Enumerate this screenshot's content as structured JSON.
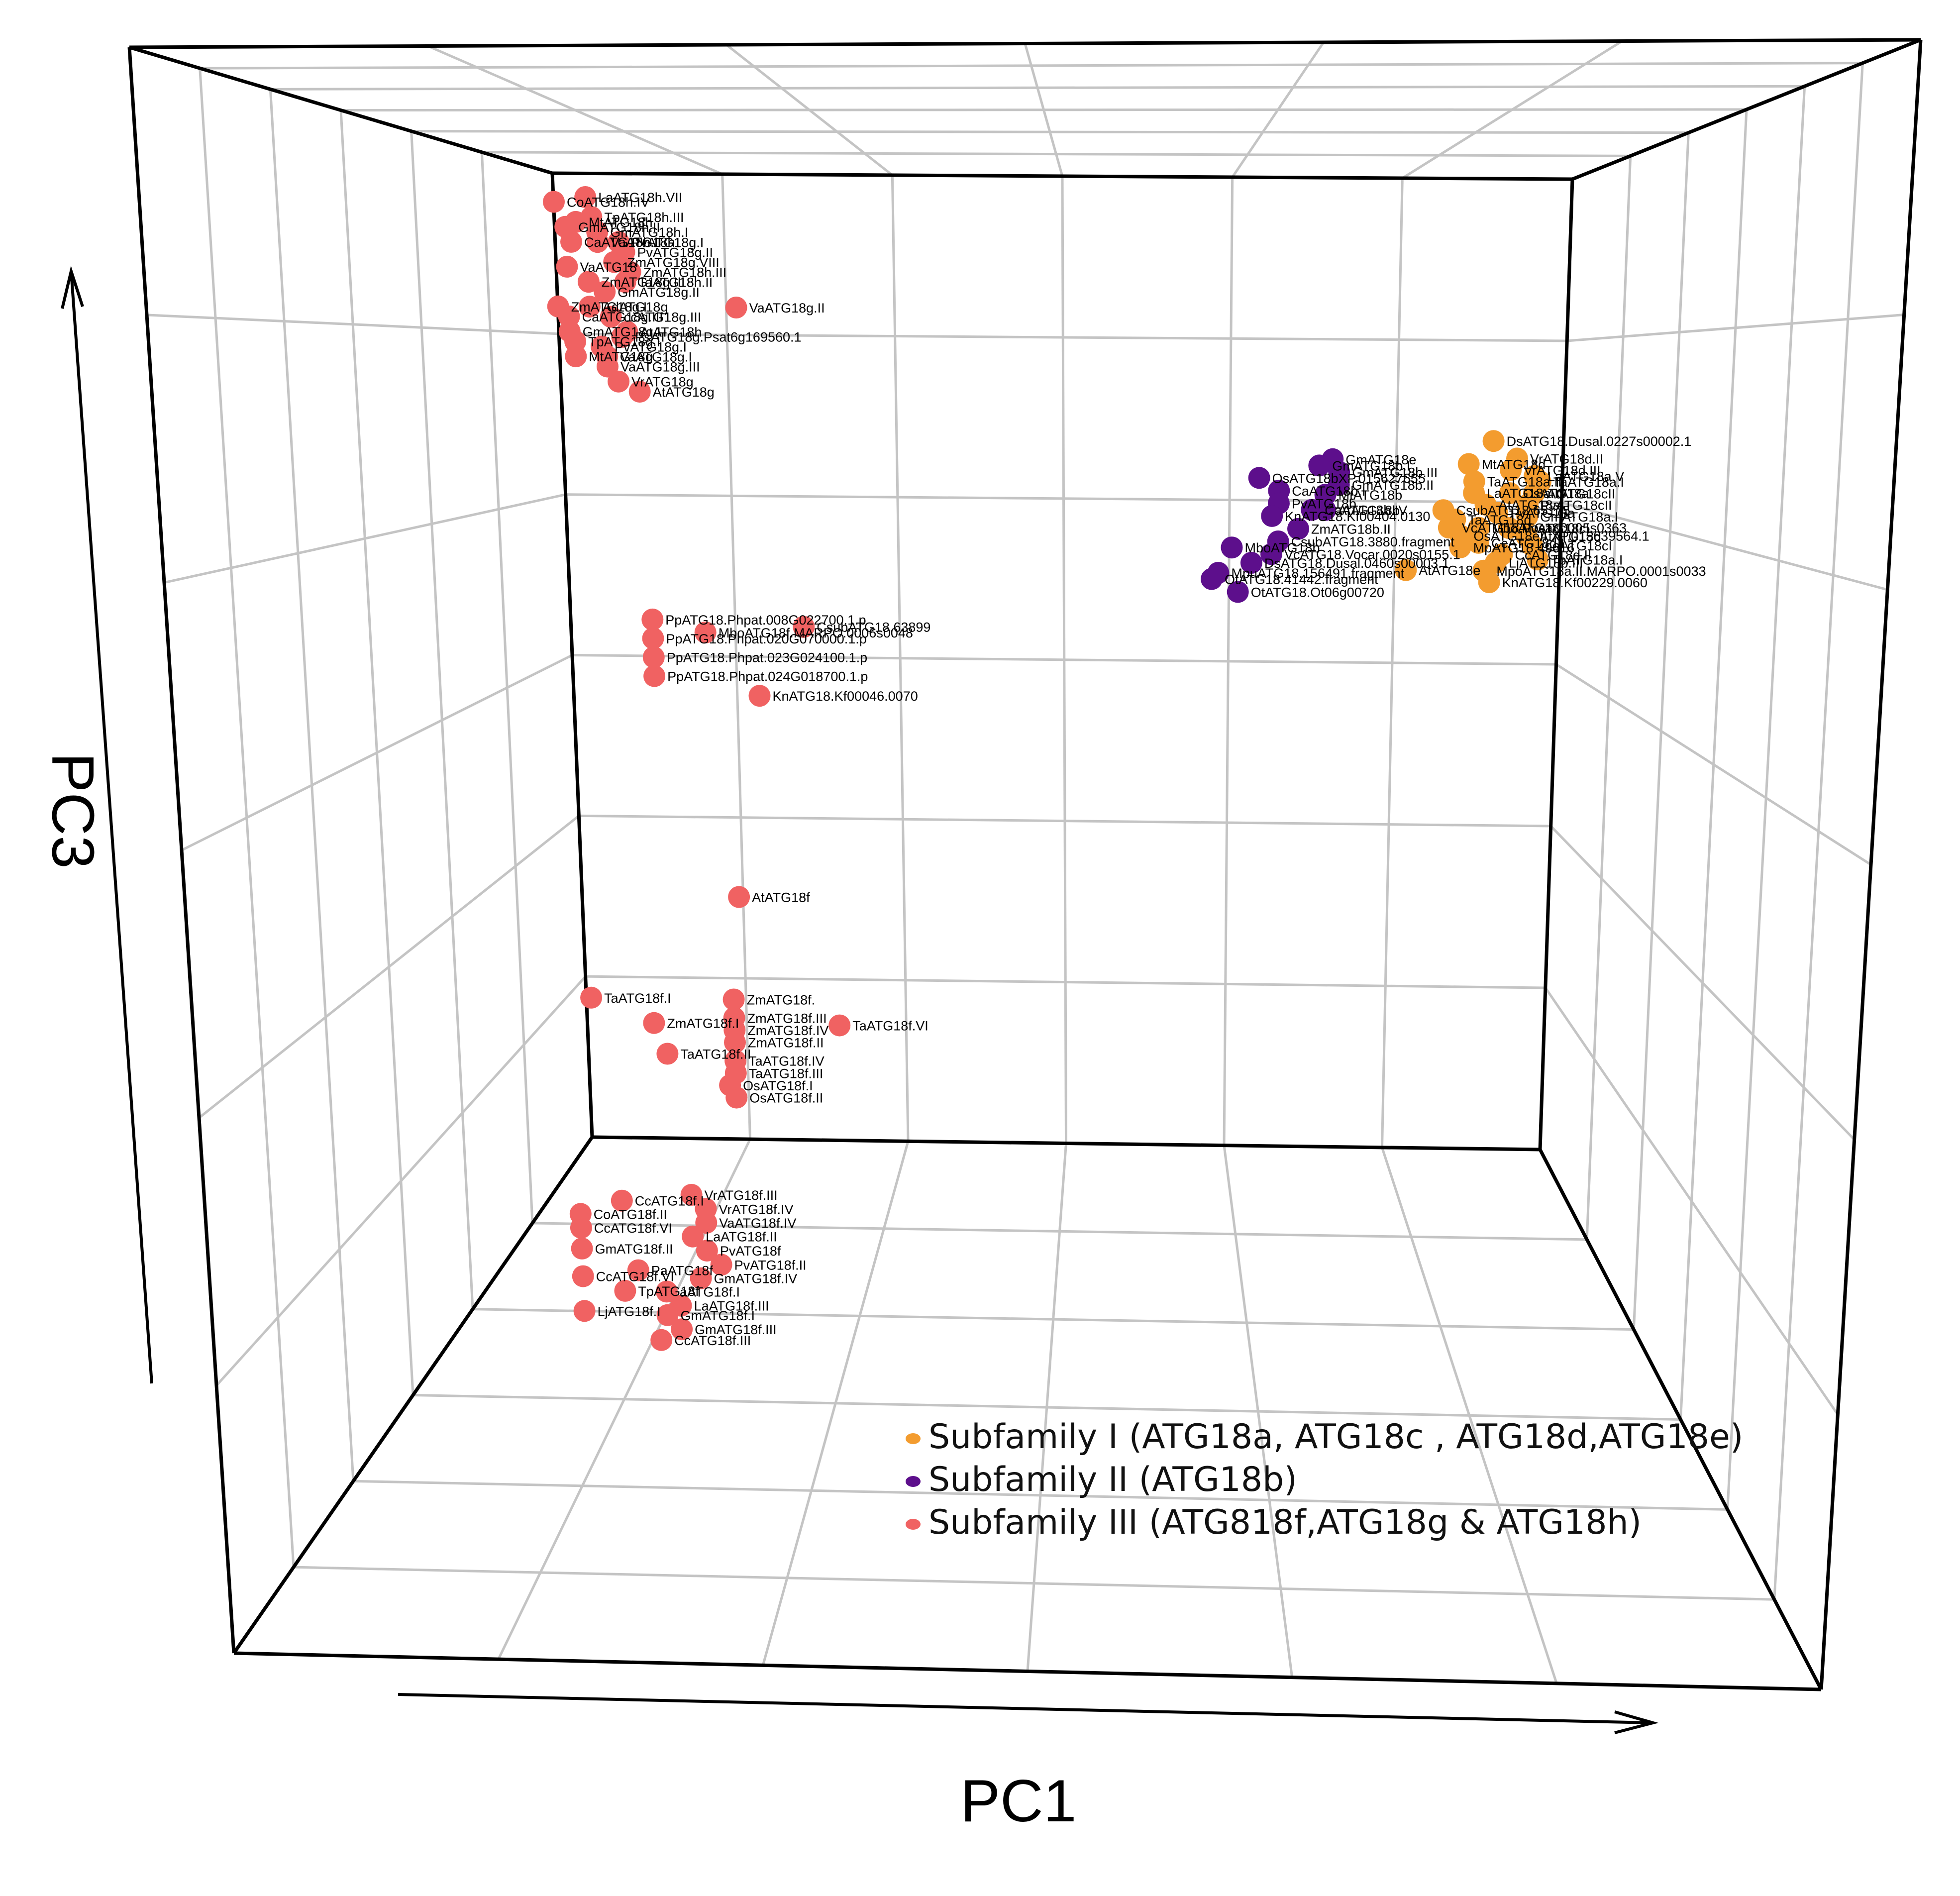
{
  "chart_data": {
    "type": "scatter",
    "projection": "3d",
    "axes": {
      "x": "PC1",
      "z": "PC3"
    },
    "grid": true,
    "legend_position": "bottom-right",
    "colors": {
      "I": "#f39c2f",
      "II": "#5d0f8c",
      "III": "#f06262"
    },
    "legend": [
      {
        "key": "I",
        "label": "Subfamily I (ATG18a, ATG18c , ATG18d,ATG18e)"
      },
      {
        "key": "II",
        "label": "Subfamily II (ATG18b)"
      },
      {
        "key": "III",
        "label": "Subfamily III (ATG818f,ATG18g & ATG18h)"
      }
    ],
    "points": [
      {
        "g": "III",
        "x": 0.02,
        "y": 0.95,
        "z": 0.965,
        "label": "CoATG18h.IV"
      },
      {
        "g": "III",
        "x": 0.05,
        "y": 0.95,
        "z": 0.97,
        "label": "LaATG18h.VII"
      },
      {
        "g": "III",
        "x": 0.055,
        "y": 0.95,
        "z": 0.95,
        "label": "TpATG18h.III"
      },
      {
        "g": "III",
        "x": 0.03,
        "y": 0.95,
        "z": 0.94,
        "label": "GmATG18h.II"
      },
      {
        "g": "III",
        "x": 0.04,
        "y": 0.95,
        "z": 0.945,
        "label": "MtATG18h"
      },
      {
        "g": "III",
        "x": 0.06,
        "y": 0.95,
        "z": 0.935,
        "label": "GmATG18h.I"
      },
      {
        "g": "III",
        "x": 0.035,
        "y": 0.95,
        "z": 0.925,
        "label": "CaATG18h.II"
      },
      {
        "g": "III",
        "x": 0.06,
        "y": 0.95,
        "z": 0.925,
        "label": "VaATG18h"
      },
      {
        "g": "III",
        "x": 0.08,
        "y": 0.95,
        "z": 0.925,
        "label": "PvATG18g.I"
      },
      {
        "g": "III",
        "x": 0.085,
        "y": 0.95,
        "z": 0.915,
        "label": "PvATG18g.II"
      },
      {
        "g": "III",
        "x": 0.075,
        "y": 0.95,
        "z": 0.905,
        "label": "ZmATG18g.VIII"
      },
      {
        "g": "III",
        "x": 0.03,
        "y": 0.95,
        "z": 0.9,
        "label": "VaATG18"
      },
      {
        "g": "III",
        "x": 0.09,
        "y": 0.95,
        "z": 0.895,
        "label": "ZmATG18h.III"
      },
      {
        "g": "III",
        "x": 0.05,
        "y": 0.95,
        "z": 0.885,
        "label": "ZmATG18g.III"
      },
      {
        "g": "III",
        "x": 0.085,
        "y": 0.95,
        "z": 0.885,
        "label": "TaATG18h.II"
      },
      {
        "g": "III",
        "x": 0.065,
        "y": 0.95,
        "z": 0.875,
        "label": "GmATG18g.II"
      },
      {
        "g": "III",
        "x": 0.05,
        "y": 0.95,
        "z": 0.86,
        "label": "AdATG18g"
      },
      {
        "g": "III",
        "x": 0.02,
        "y": 0.95,
        "z": 0.86,
        "label": "ZmATG18g.I"
      },
      {
        "g": "III",
        "x": 0.03,
        "y": 0.95,
        "z": 0.85,
        "label": "CaATG18g.III"
      },
      {
        "g": "III",
        "x": 0.07,
        "y": 0.95,
        "z": 0.85,
        "label": "ccATG18g.III"
      },
      {
        "g": "III",
        "x": 0.03,
        "y": 0.95,
        "z": 0.835,
        "label": "GmATG18g.I"
      },
      {
        "g": "III",
        "x": 0.085,
        "y": 0.95,
        "z": 0.835,
        "label": "AtATG18h"
      },
      {
        "g": "III",
        "x": 0.035,
        "y": 0.95,
        "z": 0.825,
        "label": "TpATG18g.I"
      },
      {
        "g": "III",
        "x": 0.08,
        "y": 0.95,
        "z": 0.83,
        "label": "PsATG18g.Psat6g169560.1"
      },
      {
        "g": "III",
        "x": 0.06,
        "y": 0.95,
        "z": 0.82,
        "label": "PvATG18g.I"
      },
      {
        "g": "III",
        "x": 0.035,
        "y": 0.95,
        "z": 0.81,
        "label": "MtATG18g"
      },
      {
        "g": "III",
        "x": 0.065,
        "y": 0.95,
        "z": 0.81,
        "label": "VaATG18g.I"
      },
      {
        "g": "III",
        "x": 0.065,
        "y": 0.95,
        "z": 0.8,
        "label": "VaATG18g.III"
      },
      {
        "g": "III",
        "x": 0.075,
        "y": 0.95,
        "z": 0.785,
        "label": "VrATG18g"
      },
      {
        "g": "III",
        "x": 0.095,
        "y": 0.95,
        "z": 0.775,
        "label": "AtATG18g"
      },
      {
        "g": "III",
        "x": 0.19,
        "y": 0.95,
        "z": 0.86,
        "label": "VaATG18g.II"
      },
      {
        "g": "III",
        "x": 0.2,
        "y": 0.55,
        "z": 0.6,
        "label": "PpATG18.Phpat.008G022700.1.p"
      },
      {
        "g": "III",
        "x": 0.24,
        "y": 0.55,
        "z": 0.59,
        "label": "MboATG18f.MARPO.0006s0048"
      },
      {
        "g": "III",
        "x": 0.315,
        "y": 0.55,
        "z": 0.595,
        "label": "CsubATG18.63899"
      },
      {
        "g": "III",
        "x": 0.2,
        "y": 0.55,
        "z": 0.585,
        "label": "PpATG18.Phpat.020G070000.1.p"
      },
      {
        "g": "III",
        "x": 0.2,
        "y": 0.55,
        "z": 0.57,
        "label": "PpATG18.Phpat.023G024100.1.p"
      },
      {
        "g": "III",
        "x": 0.2,
        "y": 0.55,
        "z": 0.555,
        "label": "PpATG18.Phpat.024G018700.1.p"
      },
      {
        "g": "III",
        "x": 0.28,
        "y": 0.55,
        "z": 0.54,
        "label": "KnATG18.Kf00046.0070"
      },
      {
        "g": "III",
        "x": 0.26,
        "y": 0.55,
        "z": 0.38,
        "label": "AtATG18f"
      },
      {
        "g": "III",
        "x": 0.13,
        "y": 0.6,
        "z": 0.285,
        "label": "TaATG18f.I"
      },
      {
        "g": "III",
        "x": 0.245,
        "y": 0.6,
        "z": 0.285,
        "label": "ZmATG18f."
      },
      {
        "g": "III",
        "x": 0.245,
        "y": 0.6,
        "z": 0.27,
        "label": "ZmATG18f.III"
      },
      {
        "g": "III",
        "x": 0.18,
        "y": 0.6,
        "z": 0.265,
        "label": "ZmATG18f.I"
      },
      {
        "g": "III",
        "x": 0.245,
        "y": 0.6,
        "z": 0.26,
        "label": "ZmATG18f.IV"
      },
      {
        "g": "III",
        "x": 0.33,
        "y": 0.6,
        "z": 0.265,
        "label": "TaATG18f.VI"
      },
      {
        "g": "III",
        "x": 0.245,
        "y": 0.6,
        "z": 0.25,
        "label": "ZmATG18f.II"
      },
      {
        "g": "III",
        "x": 0.19,
        "y": 0.6,
        "z": 0.24,
        "label": "TaATG18f.II"
      },
      {
        "g": "III",
        "x": 0.245,
        "y": 0.6,
        "z": 0.235,
        "label": "TaATG18f.IV"
      },
      {
        "g": "III",
        "x": 0.245,
        "y": 0.6,
        "z": 0.225,
        "label": "TaATG18f.III"
      },
      {
        "g": "III",
        "x": 0.24,
        "y": 0.6,
        "z": 0.215,
        "label": "OsATG18f.I"
      },
      {
        "g": "III",
        "x": 0.245,
        "y": 0.6,
        "z": 0.205,
        "label": "OsATG18f.II"
      },
      {
        "g": "III",
        "x": 0.2,
        "y": 0.35,
        "z": 0.2,
        "label": "CcATG18f.I"
      },
      {
        "g": "III",
        "x": 0.25,
        "y": 0.35,
        "z": 0.205,
        "label": "VrATG18f.III"
      },
      {
        "g": "III",
        "x": 0.17,
        "y": 0.35,
        "z": 0.19,
        "label": "CoATG18f.II"
      },
      {
        "g": "III",
        "x": 0.26,
        "y": 0.35,
        "z": 0.195,
        "label": "VrATG18f.IV"
      },
      {
        "g": "III",
        "x": 0.26,
        "y": 0.35,
        "z": 0.185,
        "label": "VaATG18f.IV"
      },
      {
        "g": "III",
        "x": 0.17,
        "y": 0.35,
        "z": 0.18,
        "label": "CcATG18f.VI"
      },
      {
        "g": "III",
        "x": 0.25,
        "y": 0.35,
        "z": 0.175,
        "label": "LaATG18f.II"
      },
      {
        "g": "III",
        "x": 0.26,
        "y": 0.35,
        "z": 0.165,
        "label": "PvATG18f"
      },
      {
        "g": "III",
        "x": 0.17,
        "y": 0.35,
        "z": 0.165,
        "label": "GmATG18f.II"
      },
      {
        "g": "III",
        "x": 0.27,
        "y": 0.35,
        "z": 0.155,
        "label": "PvATG18f.II"
      },
      {
        "g": "III",
        "x": 0.21,
        "y": 0.35,
        "z": 0.15,
        "label": "PaATG18f"
      },
      {
        "g": "III",
        "x": 0.255,
        "y": 0.35,
        "z": 0.145,
        "label": "GmATG18f.IV"
      },
      {
        "g": "III",
        "x": 0.17,
        "y": 0.35,
        "z": 0.145,
        "label": "CcATG18f.VI"
      },
      {
        "g": "III",
        "x": 0.2,
        "y": 0.35,
        "z": 0.135,
        "label": "TpATG18f"
      },
      {
        "g": "III",
        "x": 0.23,
        "y": 0.35,
        "z": 0.135,
        "label": "aATG18f.I"
      },
      {
        "g": "III",
        "x": 0.24,
        "y": 0.35,
        "z": 0.125,
        "label": "LaATG18f.III"
      },
      {
        "g": "III",
        "x": 0.17,
        "y": 0.35,
        "z": 0.12,
        "label": "LjATG18f.I"
      },
      {
        "g": "III",
        "x": 0.23,
        "y": 0.35,
        "z": 0.118,
        "label": "GmATG18f.I"
      },
      {
        "g": "III",
        "x": 0.24,
        "y": 0.35,
        "z": 0.108,
        "label": "GmATG18f.III"
      },
      {
        "g": "III",
        "x": 0.225,
        "y": 0.35,
        "z": 0.1,
        "label": "CcATG18f.III"
      },
      {
        "g": "II",
        "x": 0.715,
        "y": 0.55,
        "z": 0.73,
        "label": "GmATG18e"
      },
      {
        "g": "II",
        "x": 0.705,
        "y": 0.55,
        "z": 0.725,
        "label": "GmATG18b.I"
      },
      {
        "g": "II",
        "x": 0.72,
        "y": 0.55,
        "z": 0.72,
        "label": "GmATG18b.III"
      },
      {
        "g": "II",
        "x": 0.66,
        "y": 0.55,
        "z": 0.715,
        "label": "OsATG18bXP.015627655"
      },
      {
        "g": "II",
        "x": 0.72,
        "y": 0.55,
        "z": 0.71,
        "label": "GmATG18b.II"
      },
      {
        "g": "II",
        "x": 0.675,
        "y": 0.55,
        "z": 0.705,
        "label": "CaATG18b.I"
      },
      {
        "g": "II",
        "x": 0.71,
        "y": 0.55,
        "z": 0.702,
        "label": "MtATG18b"
      },
      {
        "g": "II",
        "x": 0.675,
        "y": 0.55,
        "z": 0.695,
        "label": "PvATG18b"
      },
      {
        "g": "II",
        "x": 0.71,
        "y": 0.55,
        "z": 0.69,
        "label": "AtATG18b"
      },
      {
        "g": "II",
        "x": 0.7,
        "y": 0.55,
        "z": 0.69,
        "label": "CaATG18b.IV"
      },
      {
        "g": "II",
        "x": 0.67,
        "y": 0.55,
        "z": 0.685,
        "label": "KnATG18.Kf00404.0130"
      },
      {
        "g": "II",
        "x": 0.69,
        "y": 0.55,
        "z": 0.675,
        "label": "ZmATG18b.II"
      },
      {
        "g": "II",
        "x": 0.675,
        "y": 0.55,
        "z": 0.665,
        "label": "CsubATG18.3880.fragment"
      },
      {
        "g": "II",
        "x": 0.64,
        "y": 0.55,
        "z": 0.66,
        "label": "MboATG18b"
      },
      {
        "g": "II",
        "x": 0.67,
        "y": 0.55,
        "z": 0.655,
        "label": "VcATG18.Vocar.0020s0155.1"
      },
      {
        "g": "II",
        "x": 0.655,
        "y": 0.55,
        "z": 0.648,
        "label": "DsATG18.Dusal.0460s00003.1"
      },
      {
        "g": "II",
        "x": 0.63,
        "y": 0.55,
        "z": 0.64,
        "label": "MpuATG18.156491.fragment"
      },
      {
        "g": "II",
        "x": 0.625,
        "y": 0.55,
        "z": 0.635,
        "label": "OtATG18.41442.fragment"
      },
      {
        "g": "II",
        "x": 0.645,
        "y": 0.55,
        "z": 0.625,
        "label": "OtATG18.Ot06g00720"
      },
      {
        "g": "I",
        "x": 0.865,
        "y": 0.72,
        "z": 0.74,
        "label": "DsATG18.Dusal.0227s00002.1"
      },
      {
        "g": "I",
        "x": 0.845,
        "y": 0.72,
        "z": 0.72,
        "label": "MtATG18d"
      },
      {
        "g": "I",
        "x": 0.885,
        "y": 0.72,
        "z": 0.725,
        "label": "VrATG18d.II"
      },
      {
        "g": "I",
        "x": 0.88,
        "y": 0.72,
        "z": 0.715,
        "label": "VrATG18d.III"
      },
      {
        "g": "I",
        "x": 0.9,
        "y": 0.72,
        "z": 0.71,
        "label": "LaATG18a.V"
      },
      {
        "g": "I",
        "x": 0.85,
        "y": 0.72,
        "z": 0.705,
        "label": "TaATG18a.II"
      },
      {
        "g": "I",
        "x": 0.905,
        "y": 0.72,
        "z": 0.705,
        "label": "TaATG18a.I"
      },
      {
        "g": "I",
        "x": 0.85,
        "y": 0.72,
        "z": 0.695,
        "label": "LaATG18a.IV"
      },
      {
        "g": "I",
        "x": 0.88,
        "y": 0.72,
        "z": 0.695,
        "label": "OsATG18a"
      },
      {
        "g": "I",
        "x": 0.9,
        "y": 0.72,
        "z": 0.695,
        "label": "AtATG18cII"
      },
      {
        "g": "I",
        "x": 0.86,
        "y": 0.72,
        "z": 0.685,
        "label": "AtATG18a"
      },
      {
        "g": "I",
        "x": 0.895,
        "y": 0.72,
        "z": 0.685,
        "label": "PvATG18cII"
      },
      {
        "g": "I",
        "x": 0.825,
        "y": 0.72,
        "z": 0.68,
        "label": "CsubATG18.65175"
      },
      {
        "g": "I",
        "x": 0.87,
        "y": 0.72,
        "z": 0.678,
        "label": "PvATG18a"
      },
      {
        "g": "I",
        "x": 0.895,
        "y": 0.72,
        "z": 0.675,
        "label": "GmATG18a.I"
      },
      {
        "g": "I",
        "x": 0.835,
        "y": 0.72,
        "z": 0.672,
        "label": "TaATG18d"
      },
      {
        "g": "I",
        "x": 0.83,
        "y": 0.72,
        "z": 0.665,
        "label": "VcATG18.Vocar.0005s0363"
      },
      {
        "g": "I",
        "x": 0.855,
        "y": 0.72,
        "z": 0.665,
        "label": "MboATG18c"
      },
      {
        "g": "I",
        "x": 0.88,
        "y": 0.72,
        "z": 0.665,
        "label": "PvATG18cI"
      },
      {
        "g": "I",
        "x": 0.84,
        "y": 0.72,
        "z": 0.658,
        "label": "OsATG18eII.XP.015639564.1"
      },
      {
        "g": "I",
        "x": 0.895,
        "y": 0.72,
        "z": 0.658,
        "label": "AtATG18d"
      },
      {
        "g": "I",
        "x": 0.855,
        "y": 0.72,
        "z": 0.652,
        "label": "CcATG18d.I"
      },
      {
        "g": "I",
        "x": 0.9,
        "y": 0.72,
        "z": 0.65,
        "label": "LaATG18cI"
      },
      {
        "g": "I",
        "x": 0.84,
        "y": 0.72,
        "z": 0.648,
        "label": "MpATG18.49616"
      },
      {
        "g": "I",
        "x": 0.875,
        "y": 0.72,
        "z": 0.642,
        "label": "CcATG18d.II"
      },
      {
        "g": "I",
        "x": 0.905,
        "y": 0.72,
        "z": 0.638,
        "label": "TpATG18a.I"
      },
      {
        "g": "I",
        "x": 0.87,
        "y": 0.72,
        "z": 0.635,
        "label": "LjATG18b.III"
      },
      {
        "g": "I",
        "x": 0.86,
        "y": 0.72,
        "z": 0.628,
        "label": "MpoATG18a.II.MARPO.0001s0033"
      },
      {
        "g": "I",
        "x": 0.865,
        "y": 0.72,
        "z": 0.618,
        "label": "KnATG18.Kf00229.0060"
      },
      {
        "g": "I",
        "x": 0.795,
        "y": 0.72,
        "z": 0.628,
        "label": "AtATG18e"
      }
    ]
  }
}
